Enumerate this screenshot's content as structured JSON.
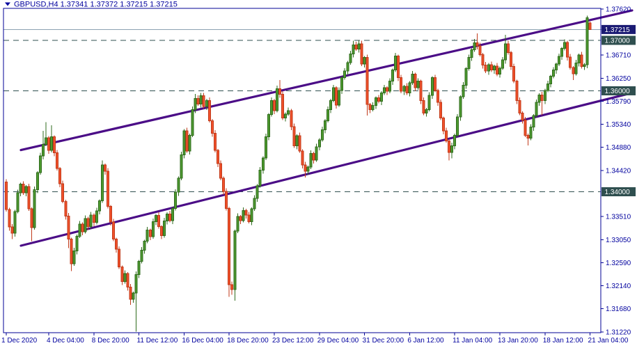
{
  "title": {
    "line": "GBPUSD,H4  1.37341 1.37372 1.37215 1.37215",
    "symbol": "GBPUSD",
    "timeframe": "H4",
    "open": "1.37341",
    "high": "1.37372",
    "low": "1.37215",
    "close": "1.37215"
  },
  "colors": {
    "background": "#FFFFFF",
    "frame": "#000096",
    "axis_text": "#00009E",
    "bull_fill": "#4D9A2F",
    "bull_stroke": "#2F6B1C",
    "bear_fill": "#F1512B",
    "bear_stroke": "#C13A1A",
    "channel": "#4B0D87",
    "level_line": "#2F4F4F",
    "bid_line": "#8BA1B1",
    "bid_label_bg": "#1A1A73",
    "level_label_bg": "#2F4F4F",
    "label_text": "#FFFFFF"
  },
  "price_axis": {
    "side_ticks": [
      "1.37620",
      "1.36710",
      "1.36250",
      "1.35790",
      "1.35340",
      "1.34880",
      "1.34420",
      "1.33510",
      "1.33050",
      "1.32590",
      "1.32140",
      "1.31680",
      "1.31220"
    ],
    "bid": {
      "price": 1.37215,
      "label": "1.37215"
    },
    "levels": [
      {
        "price": 1.37,
        "label": "1.37000"
      },
      {
        "price": 1.36,
        "label": "1.36000"
      },
      {
        "price": 1.34,
        "label": "1.34000"
      }
    ]
  },
  "time_axis": {
    "ticks": [
      {
        "label": "1 Dec 2020",
        "bar": 0
      },
      {
        "label": "4 Dec 04:00",
        "bar": 15
      },
      {
        "label": "8 Dec 20:00",
        "bar": 31
      },
      {
        "label": "11 Dec 12:00",
        "bar": 47
      },
      {
        "label": "16 Dec 04:00",
        "bar": 63
      },
      {
        "label": "18 Dec 20:00",
        "bar": 79
      },
      {
        "label": "23 Dec 12:00",
        "bar": 95
      },
      {
        "label": "29 Dec 04:00",
        "bar": 111
      },
      {
        "label": "31 Dec 20:00",
        "bar": 127
      },
      {
        "label": "6 Jan 12:00",
        "bar": 143
      },
      {
        "label": "11 Jan 04:00",
        "bar": 159
      },
      {
        "label": "13 Jan 20:00",
        "bar": 175
      },
      {
        "label": "18 Jan 12:00",
        "bar": 191
      },
      {
        "label": "21 Jan 04:00",
        "bar": 207
      }
    ]
  },
  "trend_channel": {
    "upper": {
      "price_start": 1.34826,
      "price_end": 1.37593
    },
    "lower": {
      "price_start": 1.32931,
      "price_end": 1.35959
    }
  },
  "chart_data": {
    "type": "candlestick",
    "symbol": "GBPUSD",
    "timeframe": "H4",
    "x_start_label": "1 Dec 2020",
    "x_end_label": "21 Jan 04:00",
    "y_domain": [
      1.31207,
      1.37634
    ],
    "grid": "off",
    "ohlc_current": [
      1.37341,
      1.37372,
      1.37215,
      1.37215
    ],
    "candles": [
      [
        1.3419,
        1.3425,
        1.3361,
        1.3365
      ],
      [
        1.3365,
        1.3368,
        1.3323,
        1.333
      ],
      [
        1.333,
        1.3336,
        1.3306,
        1.3318
      ],
      [
        1.3318,
        1.3364,
        1.3311,
        1.3361
      ],
      [
        1.3361,
        1.3404,
        1.3357,
        1.3398
      ],
      [
        1.3398,
        1.3418,
        1.3391,
        1.3415
      ],
      [
        1.3415,
        1.3421,
        1.3394,
        1.3398
      ],
      [
        1.3398,
        1.3413,
        1.3391,
        1.341
      ],
      [
        1.341,
        1.3416,
        1.3362,
        1.3366
      ],
      [
        1.3366,
        1.3369,
        1.3302,
        1.3329
      ],
      [
        1.3329,
        1.341,
        1.3325,
        1.3404
      ],
      [
        1.3404,
        1.3441,
        1.3397,
        1.3438
      ],
      [
        1.3438,
        1.3477,
        1.3434,
        1.3471
      ],
      [
        1.3471,
        1.3521,
        1.3464,
        1.3494
      ],
      [
        1.3494,
        1.3538,
        1.349,
        1.3507
      ],
      [
        1.3507,
        1.351,
        1.3475,
        1.3482
      ],
      [
        1.3482,
        1.3532,
        1.3478,
        1.3509
      ],
      [
        1.3509,
        1.3512,
        1.347,
        1.3477
      ],
      [
        1.3477,
        1.3483,
        1.3442,
        1.3446
      ],
      [
        1.3446,
        1.3449,
        1.3409,
        1.3416
      ],
      [
        1.3416,
        1.3422,
        1.3377,
        1.3381
      ],
      [
        1.3381,
        1.3384,
        1.3345,
        1.3352
      ],
      [
        1.3352,
        1.3358,
        1.3288,
        1.3306
      ],
      [
        1.3306,
        1.3309,
        1.3243,
        1.3257
      ],
      [
        1.3257,
        1.3289,
        1.3253,
        1.3283
      ],
      [
        1.3283,
        1.3315,
        1.3276,
        1.3312
      ],
      [
        1.3312,
        1.3342,
        1.3308,
        1.3336
      ],
      [
        1.3336,
        1.3339,
        1.3314,
        1.3321
      ],
      [
        1.3321,
        1.3353,
        1.3317,
        1.3347
      ],
      [
        1.3347,
        1.335,
        1.3324,
        1.3331
      ],
      [
        1.3331,
        1.336,
        1.3327,
        1.3354
      ],
      [
        1.3354,
        1.3357,
        1.3332,
        1.3339
      ],
      [
        1.3339,
        1.3368,
        1.3335,
        1.3362
      ],
      [
        1.3362,
        1.3385,
        1.3355,
        1.3382
      ],
      [
        1.3382,
        1.3462,
        1.3378,
        1.3453
      ],
      [
        1.3453,
        1.3456,
        1.3434,
        1.3441
      ],
      [
        1.3441,
        1.3447,
        1.3367,
        1.3371
      ],
      [
        1.3371,
        1.3374,
        1.3333,
        1.334
      ],
      [
        1.334,
        1.3346,
        1.3302,
        1.3306
      ],
      [
        1.3306,
        1.3309,
        1.3279,
        1.3286
      ],
      [
        1.3286,
        1.3292,
        1.3247,
        1.3251
      ],
      [
        1.3251,
        1.3254,
        1.3215,
        1.3222
      ],
      [
        1.3222,
        1.3244,
        1.3218,
        1.3238
      ],
      [
        1.3238,
        1.3241,
        1.3204,
        1.3211
      ],
      [
        1.3211,
        1.3217,
        1.3176,
        1.3187
      ],
      [
        1.3187,
        1.3202,
        1.318,
        1.3199
      ],
      [
        1.3199,
        1.3242,
        1.3123,
        1.3236
      ],
      [
        1.3236,
        1.3265,
        1.3229,
        1.3262
      ],
      [
        1.3262,
        1.329,
        1.3258,
        1.3284
      ],
      [
        1.3284,
        1.3305,
        1.3277,
        1.3302
      ],
      [
        1.3302,
        1.333,
        1.3298,
        1.3324
      ],
      [
        1.3324,
        1.3327,
        1.3304,
        1.3311
      ],
      [
        1.3311,
        1.3347,
        1.3307,
        1.3341
      ],
      [
        1.3341,
        1.3356,
        1.3334,
        1.3353
      ],
      [
        1.3353,
        1.3359,
        1.3327,
        1.3331
      ],
      [
        1.3331,
        1.3334,
        1.3306,
        1.3313
      ],
      [
        1.3313,
        1.3348,
        1.3309,
        1.3342
      ],
      [
        1.3342,
        1.3359,
        1.3335,
        1.3356
      ],
      [
        1.3356,
        1.3362,
        1.3339,
        1.3343
      ],
      [
        1.3343,
        1.337,
        1.3336,
        1.3367
      ],
      [
        1.3367,
        1.3405,
        1.3363,
        1.3399
      ],
      [
        1.3399,
        1.343,
        1.3392,
        1.3427
      ],
      [
        1.3427,
        1.3479,
        1.3423,
        1.3473
      ],
      [
        1.3473,
        1.3524,
        1.3466,
        1.3521
      ],
      [
        1.3521,
        1.3527,
        1.3477,
        1.3481
      ],
      [
        1.3481,
        1.3515,
        1.3474,
        1.3512
      ],
      [
        1.3512,
        1.3569,
        1.3508,
        1.3563
      ],
      [
        1.3563,
        1.3594,
        1.3556,
        1.3585
      ],
      [
        1.3585,
        1.3591,
        1.357,
        1.3574
      ],
      [
        1.3574,
        1.3596,
        1.3567,
        1.359
      ],
      [
        1.359,
        1.3596,
        1.3565,
        1.3569
      ],
      [
        1.3569,
        1.3584,
        1.3562,
        1.3581
      ],
      [
        1.3581,
        1.3587,
        1.3537,
        1.3541
      ],
      [
        1.3541,
        1.3544,
        1.3509,
        1.3516
      ],
      [
        1.3516,
        1.3522,
        1.3478,
        1.3482
      ],
      [
        1.3482,
        1.3485,
        1.3449,
        1.3456
      ],
      [
        1.3456,
        1.3462,
        1.3423,
        1.3427
      ],
      [
        1.3427,
        1.343,
        1.3394,
        1.3401
      ],
      [
        1.3401,
        1.3407,
        1.3363,
        1.3367
      ],
      [
        1.3367,
        1.337,
        1.3192,
        1.3216
      ],
      [
        1.3216,
        1.3222,
        1.3196,
        1.3206
      ],
      [
        1.3206,
        1.3325,
        1.3184,
        1.3322
      ],
      [
        1.3322,
        1.3357,
        1.3318,
        1.3351
      ],
      [
        1.3351,
        1.3354,
        1.3336,
        1.3343
      ],
      [
        1.3343,
        1.3369,
        1.3339,
        1.3363
      ],
      [
        1.3363,
        1.3366,
        1.3347,
        1.3354
      ],
      [
        1.3354,
        1.336,
        1.3337,
        1.3341
      ],
      [
        1.3341,
        1.3369,
        1.3334,
        1.3366
      ],
      [
        1.3366,
        1.3393,
        1.3362,
        1.3387
      ],
      [
        1.3387,
        1.3415,
        1.338,
        1.3412
      ],
      [
        1.3412,
        1.3449,
        1.3408,
        1.3443
      ],
      [
        1.3443,
        1.347,
        1.3436,
        1.3467
      ],
      [
        1.3467,
        1.3515,
        1.3463,
        1.3509
      ],
      [
        1.3509,
        1.3556,
        1.3502,
        1.3553
      ],
      [
        1.3553,
        1.3587,
        1.3549,
        1.3581
      ],
      [
        1.3581,
        1.3584,
        1.3554,
        1.3561
      ],
      [
        1.3561,
        1.361,
        1.3557,
        1.3604
      ],
      [
        1.3604,
        1.3621,
        1.3586,
        1.3593
      ],
      [
        1.3593,
        1.3599,
        1.3542,
        1.3546
      ],
      [
        1.3546,
        1.3557,
        1.3539,
        1.3554
      ],
      [
        1.3554,
        1.3567,
        1.355,
        1.3561
      ],
      [
        1.3561,
        1.3564,
        1.3522,
        1.3529
      ],
      [
        1.3529,
        1.3535,
        1.3487,
        1.3491
      ],
      [
        1.3491,
        1.3514,
        1.3484,
        1.3511
      ],
      [
        1.3511,
        1.3517,
        1.3477,
        1.3481
      ],
      [
        1.3481,
        1.3484,
        1.3446,
        1.3453
      ],
      [
        1.3453,
        1.3459,
        1.3428,
        1.3441
      ],
      [
        1.3441,
        1.3452,
        1.3434,
        1.3449
      ],
      [
        1.3449,
        1.3482,
        1.3445,
        1.3476
      ],
      [
        1.3476,
        1.3479,
        1.3456,
        1.3463
      ],
      [
        1.3463,
        1.3495,
        1.3459,
        1.3489
      ],
      [
        1.3489,
        1.3506,
        1.3482,
        1.3503
      ],
      [
        1.3503,
        1.3529,
        1.3499,
        1.3523
      ],
      [
        1.3523,
        1.3544,
        1.3516,
        1.3541
      ],
      [
        1.3541,
        1.3569,
        1.3537,
        1.3563
      ],
      [
        1.3563,
        1.3584,
        1.3556,
        1.3581
      ],
      [
        1.3581,
        1.3612,
        1.3577,
        1.3606
      ],
      [
        1.3606,
        1.3609,
        1.3565,
        1.3572
      ],
      [
        1.3572,
        1.3607,
        1.3568,
        1.3601
      ],
      [
        1.3601,
        1.3629,
        1.3594,
        1.3626
      ],
      [
        1.3626,
        1.3645,
        1.3622,
        1.3639
      ],
      [
        1.3639,
        1.3659,
        1.3632,
        1.3656
      ],
      [
        1.3656,
        1.3679,
        1.3652,
        1.3673
      ],
      [
        1.3673,
        1.3699,
        1.3666,
        1.3691
      ],
      [
        1.3691,
        1.3697,
        1.3679,
        1.3683
      ],
      [
        1.3683,
        1.37,
        1.3676,
        1.3693
      ],
      [
        1.3693,
        1.3699,
        1.3649,
        1.3653
      ],
      [
        1.3653,
        1.3669,
        1.3646,
        1.3666
      ],
      [
        1.3666,
        1.3672,
        1.3551,
        1.3573
      ],
      [
        1.3573,
        1.3576,
        1.3556,
        1.3563
      ],
      [
        1.3563,
        1.3577,
        1.3559,
        1.3571
      ],
      [
        1.3571,
        1.3589,
        1.3564,
        1.3586
      ],
      [
        1.3586,
        1.3592,
        1.3575,
        1.3579
      ],
      [
        1.3579,
        1.3599,
        1.3572,
        1.3596
      ],
      [
        1.3596,
        1.3612,
        1.3592,
        1.3606
      ],
      [
        1.3606,
        1.3609,
        1.3592,
        1.3599
      ],
      [
        1.3599,
        1.3625,
        1.3595,
        1.3619
      ],
      [
        1.3619,
        1.3644,
        1.3612,
        1.3641
      ],
      [
        1.3641,
        1.3675,
        1.3637,
        1.3669
      ],
      [
        1.3669,
        1.3672,
        1.3619,
        1.3626
      ],
      [
        1.3626,
        1.3632,
        1.3595,
        1.3599
      ],
      [
        1.3599,
        1.3612,
        1.3592,
        1.3609
      ],
      [
        1.3609,
        1.3615,
        1.3592,
        1.3596
      ],
      [
        1.3596,
        1.3619,
        1.3589,
        1.3616
      ],
      [
        1.3616,
        1.3639,
        1.3612,
        1.3633
      ],
      [
        1.3633,
        1.3636,
        1.3599,
        1.3606
      ],
      [
        1.3606,
        1.3625,
        1.3602,
        1.3619
      ],
      [
        1.3619,
        1.3622,
        1.3574,
        1.3581
      ],
      [
        1.3581,
        1.3587,
        1.3552,
        1.3556
      ],
      [
        1.3556,
        1.3566,
        1.3549,
        1.3563
      ],
      [
        1.3563,
        1.3597,
        1.3559,
        1.3591
      ],
      [
        1.3591,
        1.3629,
        1.3584,
        1.3626
      ],
      [
        1.3626,
        1.3632,
        1.3597,
        1.3601
      ],
      [
        1.3601,
        1.3604,
        1.357,
        1.3577
      ],
      [
        1.3577,
        1.3583,
        1.3542,
        1.3546
      ],
      [
        1.3546,
        1.3549,
        1.3514,
        1.3521
      ],
      [
        1.3521,
        1.3527,
        1.3497,
        1.3501
      ],
      [
        1.3501,
        1.3504,
        1.3462,
        1.3478
      ],
      [
        1.3478,
        1.3497,
        1.3466,
        1.3491
      ],
      [
        1.3491,
        1.3515,
        1.3484,
        1.3512
      ],
      [
        1.3512,
        1.3554,
        1.3508,
        1.3548
      ],
      [
        1.3548,
        1.3591,
        1.3541,
        1.3588
      ],
      [
        1.3588,
        1.3617,
        1.3584,
        1.3611
      ],
      [
        1.3611,
        1.3647,
        1.3604,
        1.3644
      ],
      [
        1.3644,
        1.3672,
        1.364,
        1.3666
      ],
      [
        1.3666,
        1.3684,
        1.3659,
        1.3681
      ],
      [
        1.3681,
        1.3703,
        1.3677,
        1.3695
      ],
      [
        1.3695,
        1.3714,
        1.3682,
        1.3689
      ],
      [
        1.3689,
        1.3695,
        1.3668,
        1.3672
      ],
      [
        1.3672,
        1.3675,
        1.3644,
        1.3651
      ],
      [
        1.3651,
        1.3657,
        1.3635,
        1.3639
      ],
      [
        1.3639,
        1.3655,
        1.3632,
        1.3652
      ],
      [
        1.3652,
        1.3658,
        1.3637,
        1.3641
      ],
      [
        1.3641,
        1.3652,
        1.3634,
        1.3649
      ],
      [
        1.3649,
        1.3655,
        1.3629,
        1.3633
      ],
      [
        1.3633,
        1.3648,
        1.3626,
        1.3645
      ],
      [
        1.3645,
        1.3667,
        1.3641,
        1.3661
      ],
      [
        1.3661,
        1.3711,
        1.3654,
        1.3693
      ],
      [
        1.3693,
        1.3699,
        1.3672,
        1.3676
      ],
      [
        1.3676,
        1.3679,
        1.3641,
        1.3648
      ],
      [
        1.3648,
        1.3654,
        1.3615,
        1.3619
      ],
      [
        1.3619,
        1.3622,
        1.3574,
        1.3581
      ],
      [
        1.3581,
        1.3587,
        1.3552,
        1.3556
      ],
      [
        1.3556,
        1.3559,
        1.3535,
        1.3542
      ],
      [
        1.3542,
        1.3548,
        1.3508,
        1.3512
      ],
      [
        1.3512,
        1.3515,
        1.3492,
        1.3506
      ],
      [
        1.3506,
        1.3534,
        1.3502,
        1.3528
      ],
      [
        1.3528,
        1.3554,
        1.3521,
        1.3551
      ],
      [
        1.3551,
        1.3583,
        1.3547,
        1.3577
      ],
      [
        1.3577,
        1.3595,
        1.357,
        1.3592
      ],
      [
        1.3592,
        1.3598,
        1.3552,
        1.3581
      ],
      [
        1.3581,
        1.3604,
        1.3574,
        1.3601
      ],
      [
        1.3601,
        1.362,
        1.3597,
        1.3614
      ],
      [
        1.3614,
        1.3632,
        1.3607,
        1.3629
      ],
      [
        1.3629,
        1.3647,
        1.3625,
        1.3641
      ],
      [
        1.3641,
        1.3656,
        1.3634,
        1.3653
      ],
      [
        1.3653,
        1.3674,
        1.3649,
        1.3668
      ],
      [
        1.3668,
        1.3687,
        1.3661,
        1.3684
      ],
      [
        1.3684,
        1.3702,
        1.368,
        1.3696
      ],
      [
        1.3696,
        1.3699,
        1.366,
        1.3667
      ],
      [
        1.3667,
        1.3673,
        1.3642,
        1.3646
      ],
      [
        1.3646,
        1.3649,
        1.3621,
        1.3634
      ],
      [
        1.3634,
        1.3661,
        1.363,
        1.3655
      ],
      [
        1.3655,
        1.3674,
        1.3648,
        1.3671
      ],
      [
        1.3671,
        1.3677,
        1.3644,
        1.3648
      ],
      [
        1.3648,
        1.3655,
        1.3641,
        1.3652
      ],
      [
        1.3652,
        1.3749,
        1.3645,
        1.3745
      ],
      [
        1.37341,
        1.37372,
        1.37215,
        1.37215
      ]
    ]
  }
}
